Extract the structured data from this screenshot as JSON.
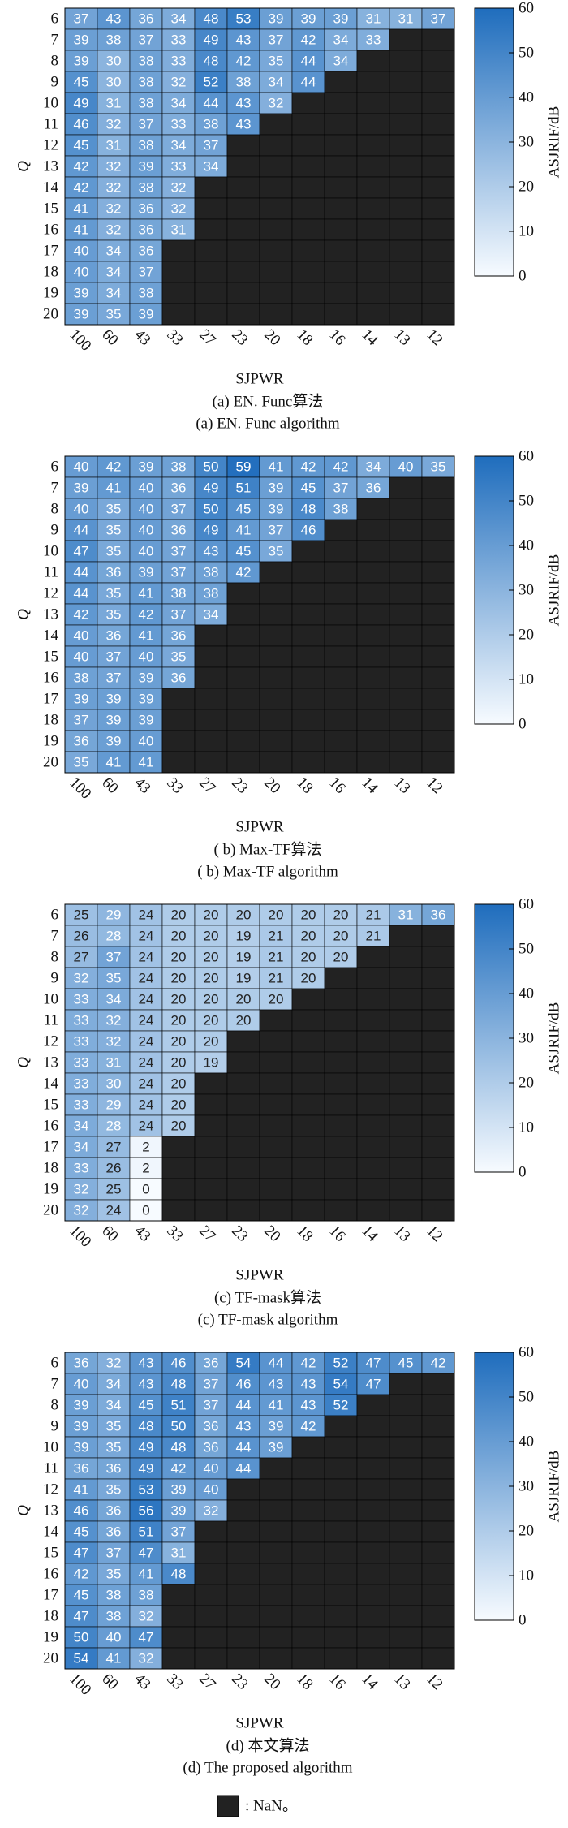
{
  "chart_data": [
    {
      "type": "heatmap",
      "xlabel": "SJPWR",
      "ylabel": "Q",
      "colorbar_label": "ASJRIF/dB",
      "caption_zh": "(a) EN. Func算法",
      "caption_en": "(a) EN. Func algorithm",
      "x": [
        "100",
        "60",
        "43",
        "33",
        "27",
        "23",
        "20",
        "18",
        "16",
        "14",
        "13",
        "12"
      ],
      "y": [
        "6",
        "7",
        "8",
        "9",
        "10",
        "11",
        "12",
        "13",
        "14",
        "15",
        "16",
        "17",
        "18",
        "19",
        "20"
      ],
      "values": [
        [
          37,
          43,
          36,
          34,
          48,
          53,
          39,
          39,
          39,
          31,
          31,
          37
        ],
        [
          39,
          38,
          37,
          33,
          49,
          43,
          37,
          42,
          34,
          33,
          null,
          null
        ],
        [
          39,
          30,
          38,
          33,
          48,
          42,
          35,
          44,
          34,
          null,
          null,
          null
        ],
        [
          45,
          30,
          38,
          32,
          52,
          38,
          34,
          44,
          null,
          null,
          null,
          null
        ],
        [
          49,
          31,
          38,
          34,
          44,
          43,
          32,
          null,
          null,
          null,
          null,
          null
        ],
        [
          46,
          32,
          37,
          33,
          38,
          43,
          null,
          null,
          null,
          null,
          null,
          null
        ],
        [
          45,
          31,
          38,
          34,
          37,
          null,
          null,
          null,
          null,
          null,
          null,
          null
        ],
        [
          42,
          32,
          39,
          33,
          34,
          null,
          null,
          null,
          null,
          null,
          null,
          null
        ],
        [
          42,
          32,
          38,
          32,
          null,
          null,
          null,
          null,
          null,
          null,
          null,
          null
        ],
        [
          41,
          32,
          36,
          32,
          null,
          null,
          null,
          null,
          null,
          null,
          null,
          null
        ],
        [
          41,
          32,
          36,
          31,
          null,
          null,
          null,
          null,
          null,
          null,
          null,
          null
        ],
        [
          40,
          34,
          36,
          null,
          null,
          null,
          null,
          null,
          null,
          null,
          null,
          null
        ],
        [
          40,
          34,
          37,
          null,
          null,
          null,
          null,
          null,
          null,
          null,
          null,
          null
        ],
        [
          39,
          34,
          38,
          null,
          null,
          null,
          null,
          null,
          null,
          null,
          null,
          null
        ],
        [
          39,
          35,
          39,
          null,
          null,
          null,
          null,
          null,
          null,
          null,
          null,
          null
        ]
      ],
      "zlim": [
        0,
        60
      ],
      "zticks": [
        0,
        10,
        20,
        30,
        40,
        50,
        60
      ],
      "colormap": [
        "#f7fbff",
        "#1f6dbd"
      ],
      "nan_color": "#222222"
    },
    {
      "type": "heatmap",
      "xlabel": "SJPWR",
      "ylabel": "Q",
      "colorbar_label": "ASJRIF/dB",
      "caption_zh": "( b) Max-TF算法",
      "caption_en": "( b) Max-TF algorithm",
      "x": [
        "100",
        "60",
        "43",
        "33",
        "27",
        "23",
        "20",
        "18",
        "16",
        "14",
        "13",
        "12"
      ],
      "y": [
        "6",
        "7",
        "8",
        "9",
        "10",
        "11",
        "12",
        "13",
        "14",
        "15",
        "16",
        "17",
        "18",
        "19",
        "20"
      ],
      "values": [
        [
          40,
          42,
          39,
          38,
          50,
          59,
          41,
          42,
          42,
          34,
          40,
          35
        ],
        [
          39,
          41,
          40,
          36,
          49,
          51,
          39,
          45,
          37,
          36,
          null,
          null
        ],
        [
          40,
          35,
          40,
          37,
          50,
          45,
          39,
          48,
          38,
          null,
          null,
          null
        ],
        [
          44,
          35,
          40,
          36,
          49,
          41,
          37,
          46,
          null,
          null,
          null,
          null
        ],
        [
          47,
          35,
          40,
          37,
          43,
          45,
          35,
          null,
          null,
          null,
          null,
          null
        ],
        [
          44,
          36,
          39,
          37,
          38,
          42,
          null,
          null,
          null,
          null,
          null,
          null
        ],
        [
          44,
          35,
          41,
          38,
          38,
          null,
          null,
          null,
          null,
          null,
          null,
          null
        ],
        [
          42,
          35,
          42,
          37,
          34,
          null,
          null,
          null,
          null,
          null,
          null,
          null
        ],
        [
          40,
          36,
          41,
          36,
          null,
          null,
          null,
          null,
          null,
          null,
          null,
          null
        ],
        [
          40,
          37,
          40,
          35,
          null,
          null,
          null,
          null,
          null,
          null,
          null,
          null
        ],
        [
          38,
          37,
          39,
          36,
          null,
          null,
          null,
          null,
          null,
          null,
          null,
          null
        ],
        [
          39,
          39,
          39,
          null,
          null,
          null,
          null,
          null,
          null,
          null,
          null,
          null
        ],
        [
          37,
          39,
          39,
          null,
          null,
          null,
          null,
          null,
          null,
          null,
          null,
          null
        ],
        [
          36,
          39,
          40,
          null,
          null,
          null,
          null,
          null,
          null,
          null,
          null,
          null
        ],
        [
          35,
          41,
          41,
          null,
          null,
          null,
          null,
          null,
          null,
          null,
          null,
          null
        ]
      ],
      "zlim": [
        0,
        60
      ],
      "zticks": [
        0,
        10,
        20,
        30,
        40,
        50,
        60
      ],
      "colormap": [
        "#f7fbff",
        "#1f6dbd"
      ],
      "nan_color": "#222222"
    },
    {
      "type": "heatmap",
      "xlabel": "SJPWR",
      "ylabel": "Q",
      "colorbar_label": "ASJRIF/dB",
      "caption_zh": "(c) TF-mask算法",
      "caption_en": "(c) TF-mask algorithm",
      "x": [
        "100",
        "60",
        "43",
        "33",
        "27",
        "23",
        "20",
        "18",
        "16",
        "14",
        "13",
        "12"
      ],
      "y": [
        "6",
        "7",
        "8",
        "9",
        "10",
        "11",
        "12",
        "13",
        "14",
        "15",
        "16",
        "17",
        "18",
        "19",
        "20"
      ],
      "values": [
        [
          25,
          29,
          24,
          20,
          20,
          20,
          20,
          20,
          20,
          21,
          31,
          36
        ],
        [
          26,
          28,
          24,
          20,
          20,
          19,
          21,
          20,
          20,
          21,
          null,
          null
        ],
        [
          27,
          37,
          24,
          20,
          20,
          19,
          21,
          20,
          20,
          null,
          null,
          null
        ],
        [
          32,
          35,
          24,
          20,
          20,
          19,
          21,
          20,
          null,
          null,
          null,
          null
        ],
        [
          33,
          34,
          24,
          20,
          20,
          20,
          20,
          null,
          null,
          null,
          null,
          null
        ],
        [
          33,
          32,
          24,
          20,
          20,
          20,
          null,
          null,
          null,
          null,
          null,
          null
        ],
        [
          33,
          32,
          24,
          20,
          20,
          null,
          null,
          null,
          null,
          null,
          null,
          null
        ],
        [
          33,
          31,
          24,
          20,
          19,
          null,
          null,
          null,
          null,
          null,
          null,
          null
        ],
        [
          33,
          30,
          24,
          20,
          null,
          null,
          null,
          null,
          null,
          null,
          null,
          null
        ],
        [
          33,
          29,
          24,
          20,
          null,
          null,
          null,
          null,
          null,
          null,
          null,
          null
        ],
        [
          34,
          28,
          24,
          20,
          null,
          null,
          null,
          null,
          null,
          null,
          null,
          null
        ],
        [
          34,
          27,
          2,
          null,
          null,
          null,
          null,
          null,
          null,
          null,
          null,
          null
        ],
        [
          33,
          26,
          2,
          null,
          null,
          null,
          null,
          null,
          null,
          null,
          null,
          null
        ],
        [
          32,
          25,
          0,
          null,
          null,
          null,
          null,
          null,
          null,
          null,
          null,
          null
        ],
        [
          32,
          24,
          0,
          null,
          null,
          null,
          null,
          null,
          null,
          null,
          null,
          null
        ]
      ],
      "zlim": [
        0,
        60
      ],
      "zticks": [
        0,
        10,
        20,
        30,
        40,
        50,
        60
      ],
      "colormap": [
        "#f7fbff",
        "#1f6dbd"
      ],
      "nan_color": "#222222"
    },
    {
      "type": "heatmap",
      "xlabel": "SJPWR",
      "ylabel": "Q",
      "colorbar_label": "ASJRIF/dB",
      "caption_zh": "(d) 本文算法",
      "caption_en": "(d) The proposed algorithm",
      "x": [
        "100",
        "60",
        "43",
        "33",
        "27",
        "23",
        "20",
        "18",
        "16",
        "14",
        "13",
        "12"
      ],
      "y": [
        "6",
        "7",
        "8",
        "9",
        "10",
        "11",
        "12",
        "13",
        "14",
        "15",
        "16",
        "17",
        "18",
        "19",
        "20"
      ],
      "values": [
        [
          36,
          32,
          43,
          46,
          36,
          54,
          44,
          42,
          52,
          47,
          45,
          42
        ],
        [
          40,
          34,
          43,
          48,
          37,
          46,
          43,
          43,
          54,
          47,
          null,
          null
        ],
        [
          39,
          34,
          45,
          51,
          37,
          44,
          41,
          43,
          52,
          null,
          null,
          null
        ],
        [
          39,
          35,
          48,
          50,
          36,
          43,
          39,
          42,
          null,
          null,
          null,
          null
        ],
        [
          39,
          35,
          49,
          48,
          36,
          44,
          39,
          null,
          null,
          null,
          null,
          null
        ],
        [
          36,
          36,
          49,
          42,
          40,
          44,
          null,
          null,
          null,
          null,
          null,
          null
        ],
        [
          41,
          35,
          53,
          39,
          40,
          null,
          null,
          null,
          null,
          null,
          null,
          null
        ],
        [
          46,
          36,
          56,
          39,
          32,
          null,
          null,
          null,
          null,
          null,
          null,
          null
        ],
        [
          45,
          36,
          51,
          37,
          null,
          null,
          null,
          null,
          null,
          null,
          null,
          null
        ],
        [
          47,
          37,
          47,
          31,
          null,
          null,
          null,
          null,
          null,
          null,
          null,
          null
        ],
        [
          42,
          35,
          41,
          48,
          null,
          null,
          null,
          null,
          null,
          null,
          null,
          null
        ],
        [
          45,
          38,
          38,
          null,
          null,
          null,
          null,
          null,
          null,
          null,
          null,
          null
        ],
        [
          47,
          38,
          32,
          null,
          null,
          null,
          null,
          null,
          null,
          null,
          null,
          null
        ],
        [
          50,
          40,
          47,
          null,
          null,
          null,
          null,
          null,
          null,
          null,
          null,
          null
        ],
        [
          54,
          41,
          32,
          null,
          null,
          null,
          null,
          null,
          null,
          null,
          null,
          null
        ]
      ],
      "zlim": [
        0,
        60
      ],
      "zticks": [
        0,
        10,
        20,
        30,
        40,
        50,
        60
      ],
      "colormap": [
        "#f7fbff",
        "#1f6dbd"
      ],
      "nan_color": "#222222"
    }
  ],
  "nan_legend": {
    "label": ": NaN。"
  }
}
